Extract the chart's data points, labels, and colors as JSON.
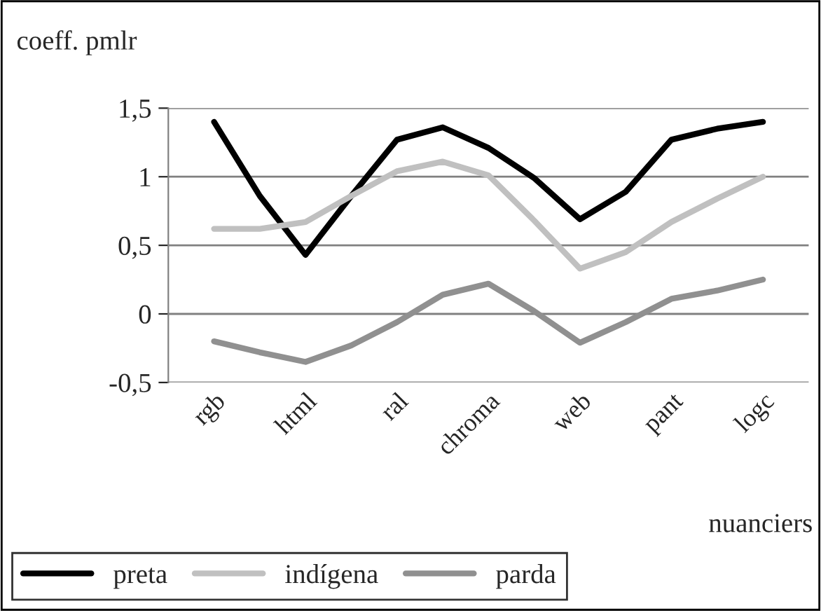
{
  "chart_data": {
    "type": "line",
    "ylabel": "coeff. pmlr",
    "xlabel": "nuanciers",
    "categories": [
      "rgb",
      null,
      "html",
      null,
      "ral",
      null,
      "chroma",
      null,
      "web",
      null,
      "pant",
      null,
      "logc"
    ],
    "series": [
      {
        "name": "preta",
        "color": "#000000",
        "values": [
          1.4,
          0.86,
          0.43,
          0.86,
          1.27,
          1.36,
          1.21,
          0.99,
          0.69,
          0.89,
          1.27,
          1.35,
          1.4
        ]
      },
      {
        "name": "indígena",
        "color": "#c0c0c0",
        "values": [
          0.62,
          0.62,
          0.67,
          0.86,
          1.04,
          1.11,
          1.01,
          0.68,
          0.33,
          0.45,
          0.67,
          0.84,
          1.0
        ]
      },
      {
        "name": "parda",
        "color": "#909090",
        "values": [
          -0.2,
          -0.28,
          -0.35,
          -0.23,
          -0.06,
          0.14,
          0.22,
          0.02,
          -0.21,
          -0.06,
          0.11,
          0.17,
          0.25
        ]
      }
    ],
    "ylim": [
      -0.5,
      1.5
    ],
    "yticks": [
      {
        "value": -0.5,
        "label": "-0,5"
      },
      0,
      {
        "value": 0.5,
        "label": "0,5"
      },
      1,
      {
        "value": 1.5,
        "label": "1,5"
      }
    ],
    "grid": "y",
    "legend": "bottom left",
    "marker": "none",
    "line_style": "solid"
  }
}
